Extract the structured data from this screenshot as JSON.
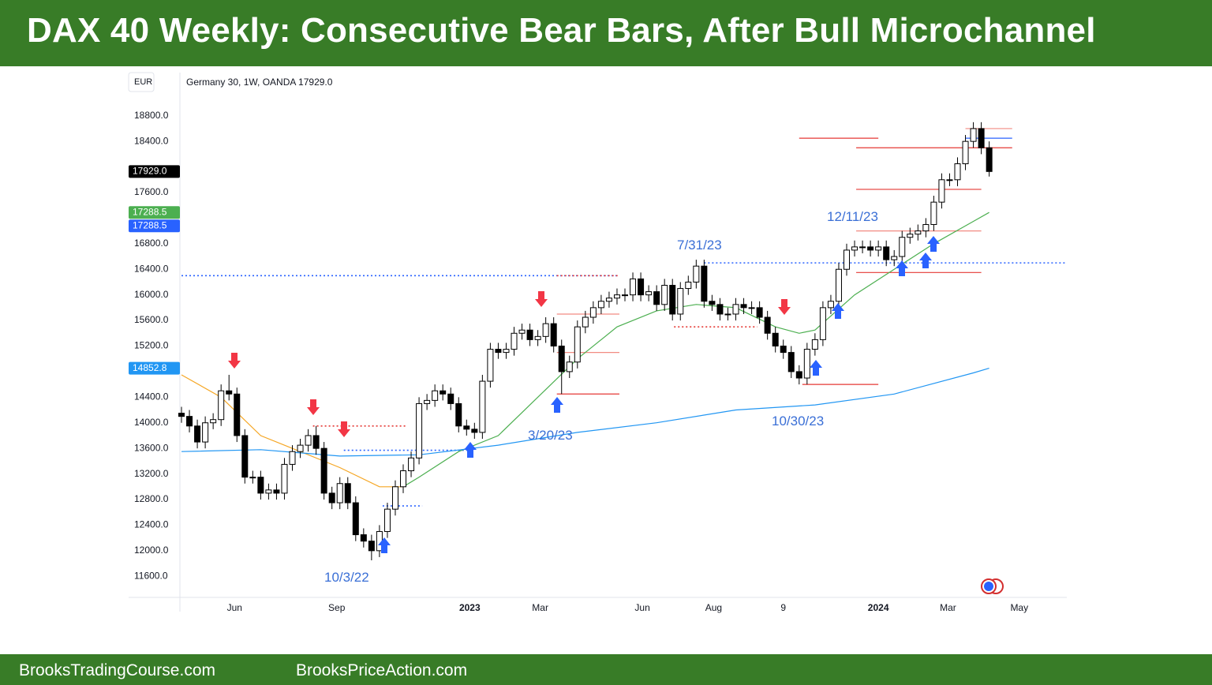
{
  "header": {
    "title": "DAX 40 Weekly: Consecutive Bear Bars, After Bull Microchannel"
  },
  "footer": {
    "left": "BrooksTradingCourse.com",
    "right": "BrooksPriceAction.com"
  },
  "chart_data": {
    "type": "candlestick",
    "currency": "EUR",
    "symbol_info": "Germany 30, 1W, OANDA  17929.0",
    "open": [
      14150,
      14100,
      13950,
      13700,
      14000,
      14050,
      14500,
      14450,
      13800,
      13150,
      13150,
      12900,
      12950,
      12900,
      13350,
      13550,
      13650,
      13800,
      13600,
      12900,
      12750,
      13050,
      12750,
      12250,
      12150,
      12000,
      12300,
      12650,
      13000,
      13250,
      13450,
      14300,
      14350,
      14500,
      14450,
      14300,
      13950,
      13900,
      13850,
      14650,
      15150,
      15100,
      15150,
      15400,
      15450,
      15300,
      15350,
      15550,
      15200,
      14800,
      14950,
      15500,
      15650,
      15800,
      15900,
      15950,
      16000,
      16000,
      16250,
      16000,
      16050,
      15850,
      16150,
      15700,
      16100,
      16200,
      16450,
      15900,
      15850,
      15700,
      15700,
      15850,
      15800,
      15800,
      15650,
      15400,
      15200,
      15100,
      14800,
      14700,
      15150,
      15300,
      15800,
      15900,
      16400,
      16700,
      16750,
      16750,
      16700,
      16750,
      16550,
      16600,
      16900,
      16950,
      17000,
      17100,
      17450,
      17800,
      17800,
      18050,
      18400,
      18600,
      18300
    ],
    "high": [
      14250,
      14200,
      14050,
      14100,
      14150,
      14600,
      14750,
      14550,
      13900,
      13250,
      13250,
      13050,
      13050,
      13450,
      13650,
      13750,
      13900,
      13950,
      13700,
      13000,
      13150,
      13150,
      12850,
      12350,
      12250,
      12400,
      12750,
      13100,
      13350,
      13550,
      14400,
      14450,
      14600,
      14600,
      14550,
      14400,
      14050,
      14000,
      14750,
      15250,
      15250,
      15250,
      15500,
      15550,
      15550,
      15450,
      15650,
      15650,
      15300,
      15050,
      15600,
      15750,
      15900,
      16000,
      16050,
      16100,
      16100,
      16350,
      16350,
      16150,
      16150,
      16250,
      16250,
      16200,
      16300,
      16550,
      16550,
      16000,
      15950,
      15800,
      15950,
      15950,
      15900,
      15900,
      15750,
      15500,
      15300,
      15200,
      14900,
      15250,
      15400,
      15900,
      16000,
      16500,
      16800,
      16850,
      16850,
      16850,
      16850,
      16850,
      16700,
      17000,
      17050,
      17100,
      17200,
      17550,
      17900,
      17900,
      18150,
      18500,
      18700,
      18700,
      18400
    ],
    "low": [
      14000,
      13850,
      13600,
      13600,
      13900,
      13950,
      14350,
      13700,
      13050,
      13050,
      12800,
      12800,
      12800,
      12800,
      13250,
      13450,
      13550,
      13500,
      12800,
      12650,
      12650,
      12650,
      12150,
      12050,
      11850,
      11900,
      12200,
      12550,
      12900,
      13150,
      13350,
      14200,
      14250,
      14350,
      14200,
      13850,
      13800,
      13750,
      13750,
      14550,
      15000,
      15000,
      15050,
      15300,
      15200,
      15200,
      15250,
      15100,
      14450,
      14700,
      14850,
      15400,
      15550,
      15700,
      15800,
      15850,
      15900,
      15900,
      15900,
      15900,
      15750,
      15750,
      15600,
      15600,
      16000,
      16100,
      15800,
      15750,
      15600,
      15600,
      15600,
      15700,
      15700,
      15550,
      15300,
      15100,
      15000,
      14700,
      14600,
      14600,
      15050,
      15200,
      15700,
      15800,
      16300,
      16600,
      16650,
      16600,
      16600,
      16450,
      16450,
      16500,
      16800,
      16850,
      16900,
      17000,
      17350,
      17700,
      17700,
      17950,
      18300,
      18200,
      17850
    ],
    "close": [
      14100,
      13950,
      13700,
      14000,
      14050,
      14500,
      14450,
      13800,
      13150,
      13150,
      12900,
      12950,
      12900,
      13350,
      13550,
      13650,
      13800,
      13600,
      12900,
      12750,
      13050,
      12750,
      12250,
      12150,
      12000,
      12300,
      12650,
      13000,
      13250,
      13450,
      14300,
      14350,
      14500,
      14450,
      14300,
      13950,
      13900,
      13850,
      14650,
      15150,
      15100,
      15150,
      15400,
      15450,
      15300,
      15350,
      15550,
      15200,
      14800,
      14950,
      15500,
      15650,
      15800,
      15900,
      15950,
      16000,
      16000,
      16250,
      16000,
      16050,
      15850,
      16150,
      15700,
      16100,
      16200,
      16450,
      15900,
      15850,
      15700,
      15700,
      15850,
      15800,
      15800,
      15650,
      15400,
      15200,
      15100,
      14800,
      14700,
      15150,
      15300,
      15800,
      15900,
      16400,
      16700,
      16750,
      16750,
      16700,
      16750,
      16550,
      16600,
      16900,
      16950,
      17000,
      17100,
      17450,
      17800,
      17800,
      18050,
      18400,
      18600,
      18300,
      17929
    ],
    "ylim": [
      11270,
      19500
    ],
    "yticks": [
      {
        "value": 11600,
        "label": "11600.0"
      },
      {
        "value": 12000,
        "label": "12000.0"
      },
      {
        "value": 12400,
        "label": "12400.0"
      },
      {
        "value": 12800,
        "label": "12800.0"
      },
      {
        "value": 13200,
        "label": "13200.0"
      },
      {
        "value": 13600,
        "label": "13600.0"
      },
      {
        "value": 14000,
        "label": "14000.0"
      },
      {
        "value": 14400,
        "label": "14400.0"
      },
      {
        "value": 15200,
        "label": "15200.0"
      },
      {
        "value": 15600,
        "label": "15600.0"
      },
      {
        "value": 16000,
        "label": "16000.0"
      },
      {
        "value": 16400,
        "label": "16400.0"
      },
      {
        "value": 16800,
        "label": "16800.0"
      },
      {
        "value": 17600,
        "label": "17600.0"
      },
      {
        "value": 18400,
        "label": "18400.0"
      },
      {
        "value": 18800,
        "label": "18800.0"
      }
    ],
    "xlim": [
      -0.2,
      111.8
    ],
    "xticks": [
      {
        "value": 6.7,
        "label": "Jun"
      },
      {
        "value": 19.6,
        "label": "Sep"
      },
      {
        "value": 36.4,
        "label": "2023"
      },
      {
        "value": 45.3,
        "label": "Mar"
      },
      {
        "value": 58.2,
        "label": "Jun"
      },
      {
        "value": 67.2,
        "label": "Aug"
      },
      {
        "value": 76,
        "label": "9"
      },
      {
        "value": 88,
        "label": "2024"
      },
      {
        "value": 96.8,
        "label": "Mar"
      },
      {
        "value": 105.8,
        "label": "May"
      }
    ],
    "lines": [
      {
        "color": "#f5a623",
        "x": [
          0,
          5,
          10,
          15,
          20,
          25,
          28
        ],
        "values": [
          14750,
          14400,
          13800,
          13550,
          13300,
          13000,
          13000
        ]
      },
      {
        "color": "#4caf50",
        "x": [
          28,
          30,
          35,
          40,
          45,
          50,
          55,
          60,
          65,
          70,
          75,
          78,
          80,
          85,
          90,
          95,
          100,
          102
        ],
        "values": [
          13000,
          13150,
          13550,
          13800,
          14400,
          15000,
          15500,
          15750,
          15850,
          15800,
          15500,
          15400,
          15450,
          16000,
          16400,
          16800,
          17150,
          17288.5
        ]
      },
      {
        "color": "#2196f3",
        "x": [
          0,
          10,
          20,
          30,
          40,
          50,
          60,
          70,
          80,
          90,
          100,
          102
        ],
        "values": [
          13550,
          13580,
          13480,
          13500,
          13650,
          13850,
          14000,
          14200,
          14280,
          14450,
          14780,
          14852.8
        ]
      }
    ],
    "levels": [
      {
        "value": 16300,
        "x": [
          0,
          55
        ],
        "color": "#2962ff",
        "dotted": true
      },
      {
        "value": 16500,
        "x": [
          66,
          112
        ],
        "color": "#2962ff",
        "dotted": true
      },
      {
        "value": 13950,
        "x": [
          16.6,
          28.4
        ],
        "color": "#e53935",
        "dotted": true
      },
      {
        "value": 13570,
        "x": [
          20.5,
          36.8
        ],
        "color": "#2962ff",
        "dotted": true
      },
      {
        "value": 12700,
        "x": [
          25.4,
          30.4
        ],
        "color": "#2962ff",
        "dotted": true
      },
      {
        "value": 16300,
        "x": [
          47.4,
          55.3
        ],
        "color": "#e53935",
        "dotted": true
      },
      {
        "value": 14450,
        "x": [
          47.4,
          55.3
        ],
        "color": "#e53935",
        "dotted": false
      },
      {
        "value": 15700,
        "x": [
          47.4,
          55.3
        ],
        "color": "#f28b82",
        "dotted": false
      },
      {
        "value": 15100,
        "x": [
          47.4,
          55.3
        ],
        "color": "#f28b82",
        "dotted": false
      },
      {
        "value": 15500,
        "x": [
          62.2,
          72.7
        ],
        "color": "#e53935",
        "dotted": true
      },
      {
        "value": 14600,
        "x": [
          78.4,
          88
        ],
        "color": "#e53935",
        "dotted": false
      },
      {
        "value": 16350,
        "x": [
          85.2,
          101
        ],
        "color": "#e53935",
        "dotted": false
      },
      {
        "value": 17000,
        "x": [
          85.2,
          101
        ],
        "color": "#f28b82",
        "dotted": false
      },
      {
        "value": 17650,
        "x": [
          85.2,
          101
        ],
        "color": "#e53935",
        "dotted": false
      },
      {
        "value": 18300,
        "x": [
          85.2,
          104.9
        ],
        "color": "#e53935",
        "dotted": false
      },
      {
        "value": 18450,
        "x": [
          78,
          88
        ],
        "color": "#e53935",
        "dotted": false
      },
      {
        "value": 18600,
        "x": [
          99,
          104.9
        ],
        "color": "#f28b82",
        "dotted": false
      },
      {
        "value": 18450,
        "x": [
          99,
          104.9
        ],
        "color": "#2962ff",
        "dotted": false
      }
    ],
    "price_tags": [
      {
        "value": 17929.0,
        "label": "17929.0",
        "color": "#000000"
      },
      {
        "value": 17288.5,
        "label": "17288.5",
        "color": "#4caf50"
      },
      {
        "value": 17288.5,
        "label": "17288.5",
        "color": "#2962ff"
      },
      {
        "value": 14852.8,
        "label": "14852.8",
        "color": "#2196f3"
      }
    ],
    "annotations": [
      "10/3/22",
      "3/20/23",
      "7/31/23",
      "10/30/23",
      "12/11/23"
    ]
  }
}
